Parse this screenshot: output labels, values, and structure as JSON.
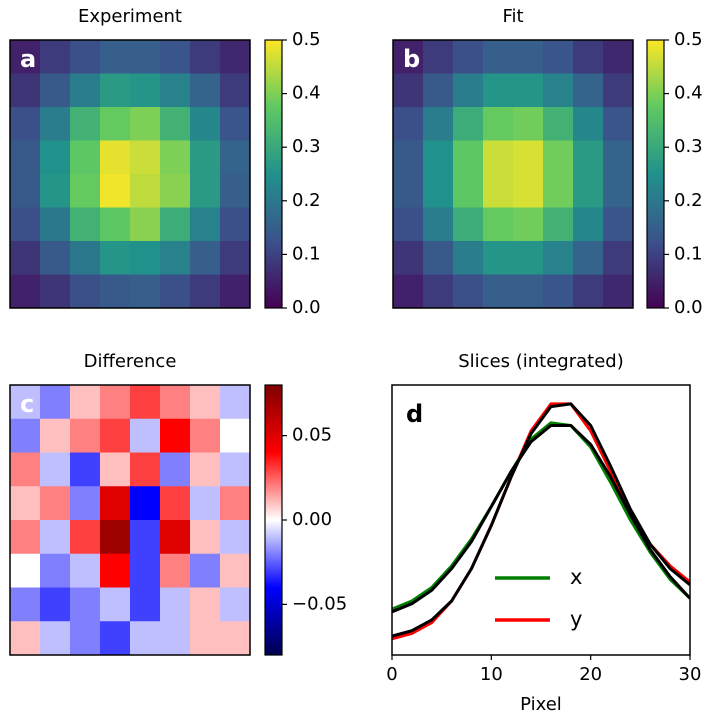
{
  "chart_data": [
    {
      "type": "heatmap",
      "title": "Experiment",
      "label": "a",
      "colormap": [
        "#440154",
        "#3b528b",
        "#21918c",
        "#5ec962",
        "#fde725"
      ],
      "clim": [
        0,
        0.5
      ],
      "cticks": [
        {
          "value": 0,
          "label": "0.0"
        },
        0.1,
        0.2,
        0.3,
        0.4,
        0.5
      ],
      "values": [
        [
          0.05,
          0.09,
          0.12,
          0.15,
          0.15,
          0.13,
          0.09,
          0.06
        ],
        [
          0.08,
          0.14,
          0.21,
          0.27,
          0.26,
          0.22,
          0.16,
          0.09
        ],
        [
          0.12,
          0.21,
          0.32,
          0.38,
          0.4,
          0.32,
          0.23,
          0.13
        ],
        [
          0.14,
          0.25,
          0.37,
          0.48,
          0.46,
          0.4,
          0.27,
          0.16
        ],
        [
          0.14,
          0.26,
          0.38,
          0.49,
          0.45,
          0.41,
          0.27,
          0.15
        ],
        [
          0.12,
          0.2,
          0.32,
          0.37,
          0.41,
          0.31,
          0.22,
          0.12
        ],
        [
          0.08,
          0.14,
          0.2,
          0.26,
          0.25,
          0.22,
          0.15,
          0.09
        ],
        [
          0.05,
          0.08,
          0.12,
          0.14,
          0.15,
          0.12,
          0.09,
          0.05
        ]
      ]
    },
    {
      "type": "heatmap",
      "title": "Fit",
      "label": "b",
      "colormap": [
        "#440154",
        "#3b528b",
        "#21918c",
        "#5ec962",
        "#fde725"
      ],
      "clim": [
        0,
        0.5
      ],
      "cticks": [
        {
          "value": 0,
          "label": "0.0"
        },
        0.1,
        0.2,
        0.3,
        0.4,
        0.5
      ],
      "values": [
        [
          0.05,
          0.09,
          0.12,
          0.15,
          0.15,
          0.13,
          0.09,
          0.06
        ],
        [
          0.08,
          0.14,
          0.21,
          0.26,
          0.26,
          0.22,
          0.16,
          0.09
        ],
        [
          0.12,
          0.21,
          0.31,
          0.38,
          0.39,
          0.32,
          0.23,
          0.13
        ],
        [
          0.14,
          0.25,
          0.37,
          0.46,
          0.47,
          0.39,
          0.27,
          0.16
        ],
        [
          0.14,
          0.25,
          0.37,
          0.46,
          0.47,
          0.39,
          0.27,
          0.16
        ],
        [
          0.12,
          0.21,
          0.31,
          0.38,
          0.39,
          0.32,
          0.23,
          0.13
        ],
        [
          0.08,
          0.14,
          0.21,
          0.26,
          0.26,
          0.22,
          0.16,
          0.09
        ],
        [
          0.05,
          0.09,
          0.12,
          0.15,
          0.15,
          0.13,
          0.09,
          0.06
        ]
      ]
    },
    {
      "type": "heatmap",
      "title": "Difference",
      "label": "c",
      "colormap": [
        "#00004c",
        "#0000ff",
        "#ffffff",
        "#ff0000",
        "#7f0000"
      ],
      "clim": [
        -0.08,
        0.08
      ],
      "cticks": [
        {
          "value": -0.05,
          "label": "−0.05"
        },
        {
          "value": 0,
          "label": "0.00"
        },
        {
          "value": 0.05,
          "label": "0.05"
        }
      ],
      "values": [
        [
          -0.01,
          -0.02,
          0.01,
          0.02,
          0.03,
          0.02,
          0.01,
          -0.01
        ],
        [
          -0.02,
          0.01,
          0.02,
          0.03,
          -0.01,
          0.04,
          0.02,
          0.0
        ],
        [
          0.02,
          -0.01,
          -0.03,
          0.01,
          0.03,
          -0.02,
          0.01,
          -0.01
        ],
        [
          0.01,
          0.02,
          -0.02,
          0.05,
          -0.04,
          0.03,
          -0.01,
          0.02
        ],
        [
          0.02,
          -0.01,
          0.03,
          0.07,
          -0.03,
          0.05,
          0.01,
          -0.01
        ],
        [
          0.0,
          -0.02,
          -0.01,
          0.04,
          -0.03,
          0.02,
          -0.02,
          0.01
        ],
        [
          -0.02,
          -0.03,
          -0.02,
          -0.01,
          -0.03,
          -0.01,
          0.01,
          -0.01
        ],
        [
          0.01,
          -0.01,
          -0.02,
          -0.03,
          -0.01,
          -0.01,
          0.01,
          0.01
        ]
      ]
    },
    {
      "type": "line",
      "title": "Slices (integrated)",
      "label": "d",
      "xlabel": "Pixel",
      "x": [
        0,
        2,
        4,
        6,
        8,
        10,
        12,
        14,
        16,
        18,
        20,
        22,
        24,
        26,
        28,
        30
      ],
      "xlim": [
        0,
        30
      ],
      "xticks": [
        0,
        10,
        20,
        30
      ],
      "ylim": [
        0,
        1
      ],
      "series": [
        {
          "name": "x",
          "color": "#008000",
          "values": [
            0.17,
            0.2,
            0.25,
            0.33,
            0.43,
            0.55,
            0.68,
            0.8,
            0.86,
            0.85,
            0.77,
            0.64,
            0.5,
            0.38,
            0.28,
            0.21
          ]
        },
        {
          "name": "y",
          "color": "#ff0000",
          "values": [
            0.06,
            0.08,
            0.12,
            0.2,
            0.32,
            0.48,
            0.66,
            0.83,
            0.93,
            0.93,
            0.83,
            0.68,
            0.53,
            0.41,
            0.33,
            0.27
          ]
        },
        {
          "color": "#000000",
          "values": [
            0.16,
            0.19,
            0.24,
            0.32,
            0.42,
            0.55,
            0.68,
            0.79,
            0.85,
            0.85,
            0.78,
            0.66,
            0.52,
            0.39,
            0.29,
            0.21
          ]
        },
        {
          "color": "#000000",
          "values": [
            0.07,
            0.09,
            0.13,
            0.2,
            0.32,
            0.48,
            0.66,
            0.82,
            0.92,
            0.93,
            0.85,
            0.7,
            0.54,
            0.41,
            0.32,
            0.26
          ]
        }
      ]
    }
  ]
}
